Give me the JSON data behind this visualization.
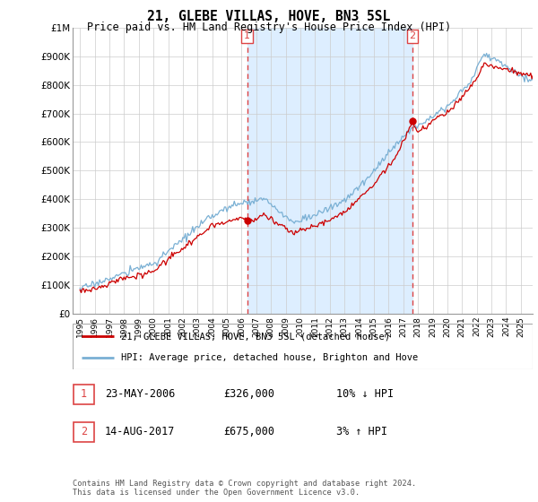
{
  "title": "21, GLEBE VILLAS, HOVE, BN3 5SL",
  "subtitle": "Price paid vs. HM Land Registry's House Price Index (HPI)",
  "footnote": "Contains HM Land Registry data © Crown copyright and database right 2024.\nThis data is licensed under the Open Government Licence v3.0.",
  "legend_line1": "21, GLEBE VILLAS, HOVE, BN3 5SL (detached house)",
  "legend_line2": "HPI: Average price, detached house, Brighton and Hove",
  "sale1_label": "1",
  "sale1_date": "23-MAY-2006",
  "sale1_price": "£326,000",
  "sale1_hpi": "10% ↓ HPI",
  "sale2_label": "2",
  "sale2_date": "14-AUG-2017",
  "sale2_price": "£675,000",
  "sale2_hpi": "3% ↑ HPI",
  "sale1_year": 2006.38,
  "sale1_value": 326000,
  "sale2_year": 2017.62,
  "sale2_value": 675000,
  "ylim": [
    0,
    1000000
  ],
  "yticks": [
    0,
    100000,
    200000,
    300000,
    400000,
    500000,
    600000,
    700000,
    800000,
    900000,
    1000000
  ],
  "ytick_labels": [
    "£0",
    "£100K",
    "£200K",
    "£300K",
    "£400K",
    "£500K",
    "£600K",
    "£700K",
    "£800K",
    "£900K",
    "£1M"
  ],
  "red_color": "#cc0000",
  "blue_color": "#7ab0d4",
  "shade_color": "#ddeeff",
  "dashed_color": "#dd4444",
  "bg_color": "#ffffff",
  "grid_color": "#cccccc"
}
